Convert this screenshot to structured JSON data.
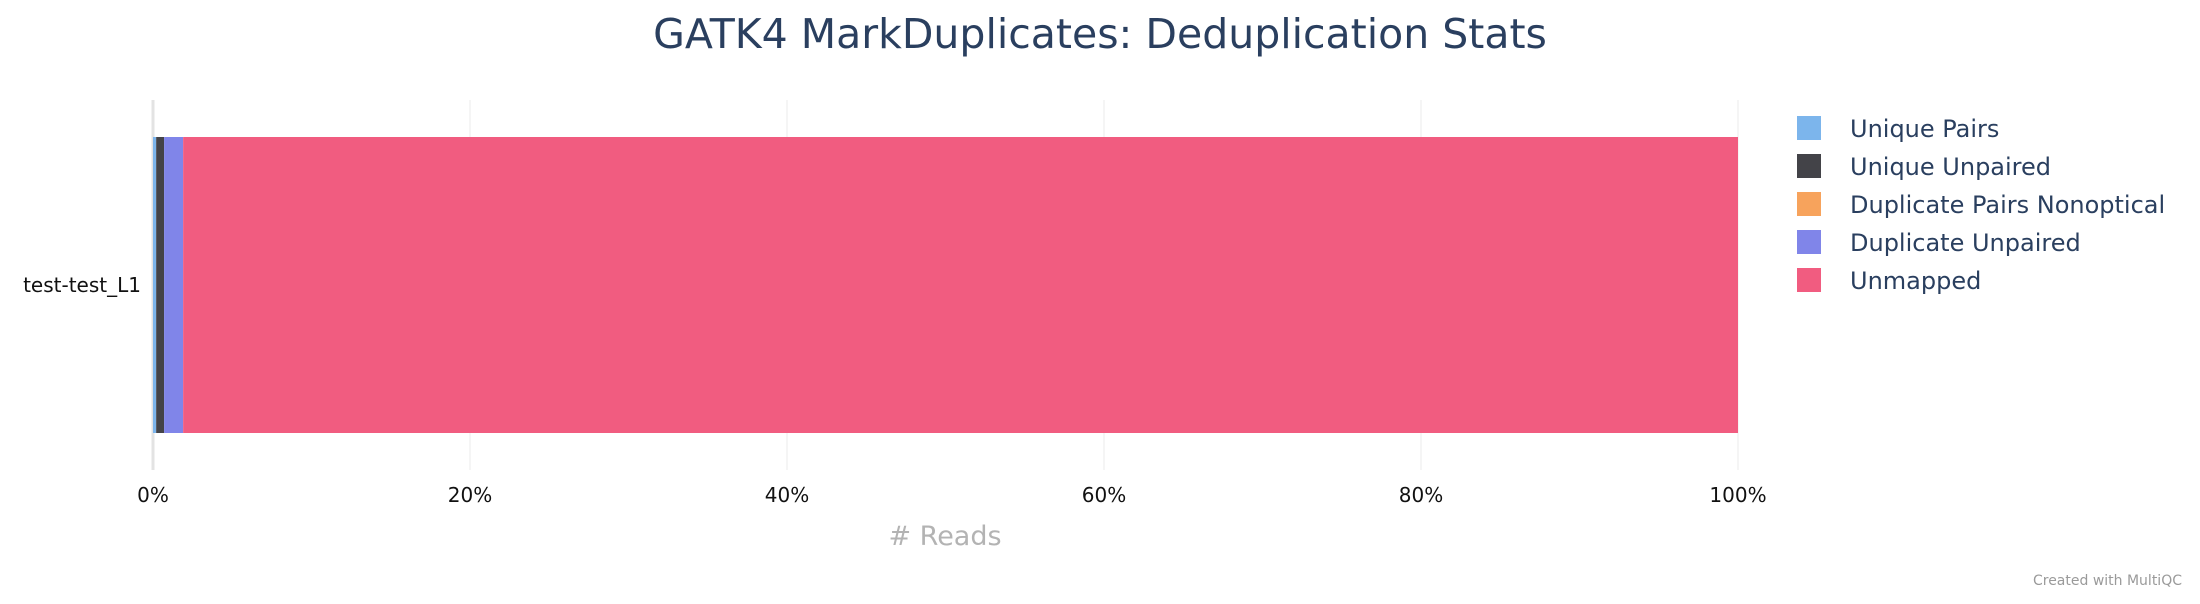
{
  "chart_data": {
    "type": "bar",
    "orientation": "horizontal",
    "stacked": true,
    "percent_scale": true,
    "title": "GATK4 MarkDuplicates: Deduplication Stats",
    "xlabel": "# Reads",
    "ylabel": "",
    "xlim": [
      0,
      100
    ],
    "x_ticks": [
      "0%",
      "20%",
      "40%",
      "60%",
      "80%",
      "100%"
    ],
    "x_tick_values": [
      0,
      20,
      40,
      60,
      80,
      100
    ],
    "grid": "vertical",
    "legend_position": "right",
    "categories": [
      "test-test_L1"
    ],
    "series": [
      {
        "name": "Unique Pairs",
        "color": "#7cb5ec",
        "values": [
          0.2
        ]
      },
      {
        "name": "Unique Unpaired",
        "color": "#434348",
        "values": [
          0.5
        ]
      },
      {
        "name": "Duplicate Pairs Nonoptical",
        "color": "#f7a35c",
        "values": [
          0.0
        ]
      },
      {
        "name": "Duplicate Unpaired",
        "color": "#8085e9",
        "values": [
          1.2
        ]
      },
      {
        "name": "Unmapped",
        "color": "#f15c80",
        "values": [
          98.1
        ]
      }
    ],
    "credit": "Created with MultiQC"
  }
}
